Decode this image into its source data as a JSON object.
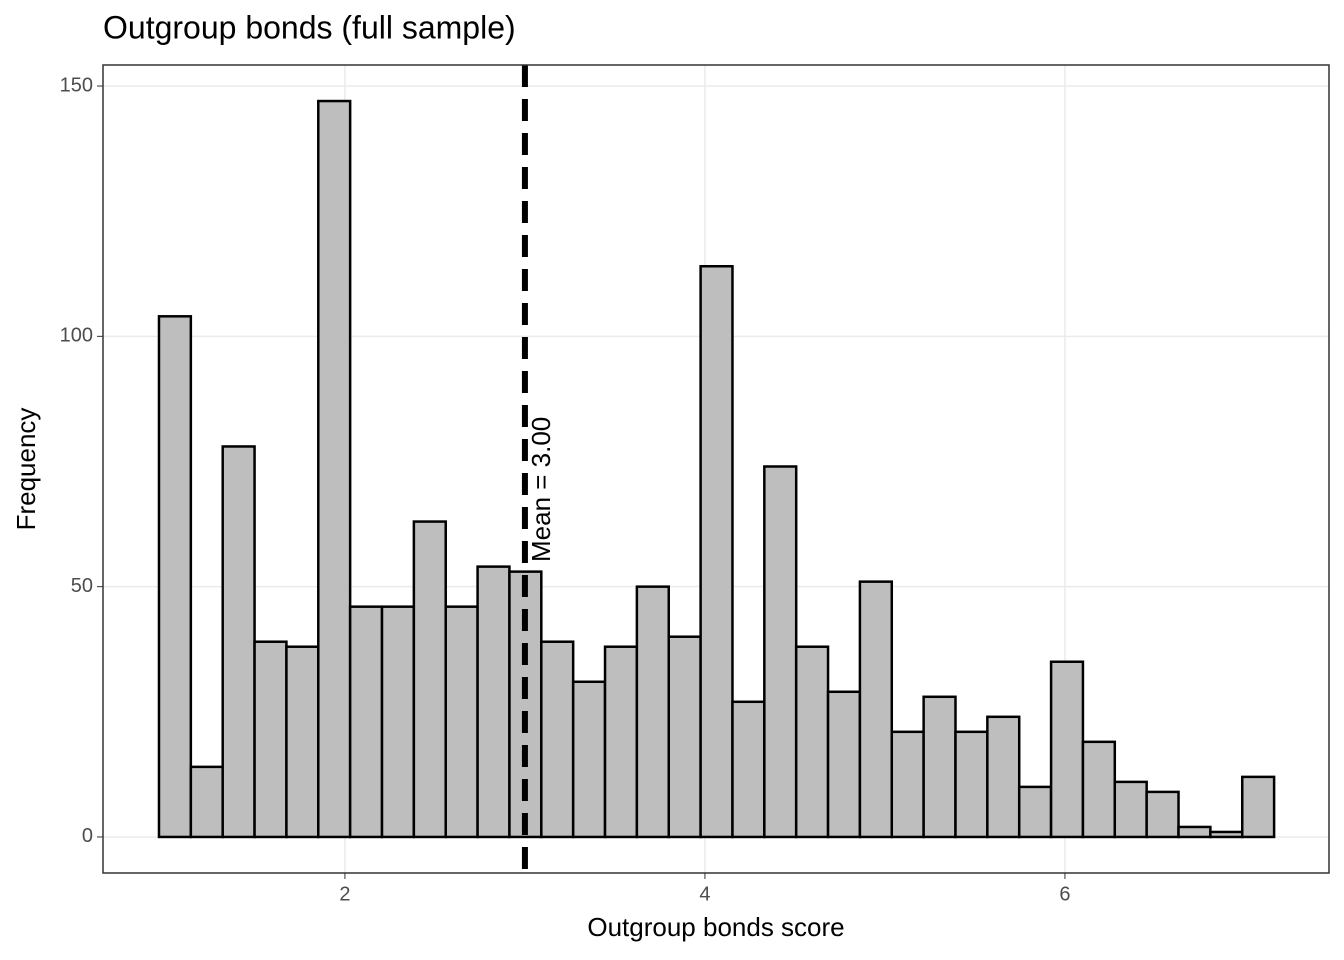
{
  "chart_data": {
    "type": "histogram",
    "title": "Outgroup bonds (full sample)",
    "x_label": "Outgroup bonds score",
    "y_label": "Frequency",
    "bins": [
      0.967,
      1.144,
      1.321,
      1.498,
      1.675,
      1.852,
      2.029,
      2.206,
      2.383,
      2.56,
      2.737,
      2.914,
      3.091,
      3.268,
      3.445,
      3.622,
      3.799,
      3.976,
      4.153,
      4.33,
      4.507,
      4.684,
      4.861,
      5.038,
      5.215,
      5.392,
      5.569,
      5.746,
      5.923,
      6.1,
      6.277,
      6.454,
      6.631,
      6.808,
      6.985,
      7.162
    ],
    "values": [
      104,
      14,
      78,
      39,
      38,
      147,
      46,
      46,
      63,
      46,
      54,
      53,
      39,
      31,
      38,
      50,
      40,
      114,
      27,
      74,
      38,
      29,
      51,
      21,
      28,
      21,
      24,
      10,
      35,
      19,
      11,
      9,
      2,
      1,
      12
    ],
    "color": "#bebebe",
    "edge_color": "#000000",
    "xlim": [
      0.656,
      7.467
    ],
    "xticks": [
      2,
      4,
      6
    ],
    "ylim": [
      -7.2,
      154.2
    ],
    "yticks": [
      0,
      50,
      100,
      150
    ],
    "grid": true,
    "mean_line": {
      "x": 3.0,
      "label": "Mean = 3.00"
    }
  }
}
